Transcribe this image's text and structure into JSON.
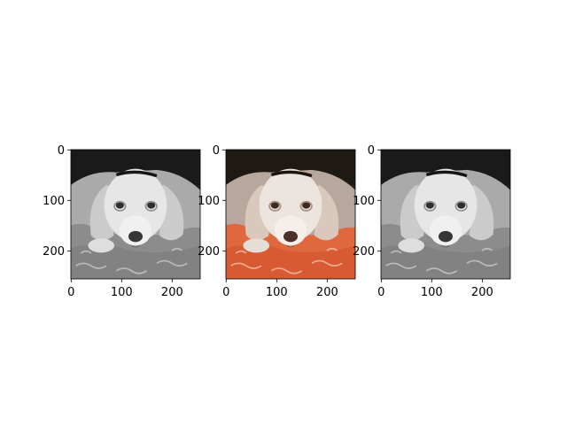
{
  "chart_data": [
    {
      "type": "image",
      "rendering": "grayscale",
      "xlim": [
        0,
        255
      ],
      "ylim": [
        255,
        0
      ],
      "xticks": [
        0,
        100,
        200
      ],
      "yticks": [
        0,
        100,
        200
      ],
      "xtick_labels": [
        "0",
        "100",
        "200"
      ],
      "ytick_labels": [
        "0",
        "100",
        "200"
      ]
    },
    {
      "type": "image",
      "rendering": "color",
      "xlim": [
        0,
        255
      ],
      "ylim": [
        255,
        0
      ],
      "xticks": [
        0,
        100,
        200
      ],
      "yticks": [
        0,
        100,
        200
      ],
      "xtick_labels": [
        "0",
        "100",
        "200"
      ],
      "ytick_labels": [
        "0",
        "100",
        "200"
      ]
    },
    {
      "type": "image",
      "rendering": "grayscale",
      "xlim": [
        0,
        255
      ],
      "ylim": [
        255,
        0
      ],
      "xticks": [
        0,
        100,
        200
      ],
      "yticks": [
        0,
        100,
        200
      ],
      "xtick_labels": [
        "0",
        "100",
        "200"
      ],
      "ytick_labels": [
        "0",
        "100",
        "200"
      ]
    }
  ],
  "colors": {
    "tick": "#000000",
    "axes_edge": "#000000",
    "pillow_color": "#e0683f",
    "fur_color": "#e9e1dc",
    "dark_background": "#2a221c"
  }
}
